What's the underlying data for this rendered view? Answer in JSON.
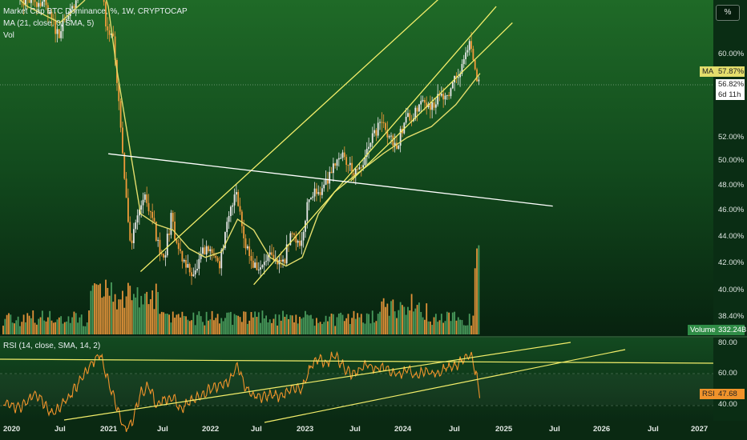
{
  "legend": {
    "title": "Market Cap BTC Dominance, %, 1W, CRYPTOCAP",
    "ma": "MA (21, close, 0, SMA, 5)",
    "vol": "Vol",
    "rsi": "RSI (14, close, SMA, 14, 2)"
  },
  "percent_button": "%",
  "price_axis": [
    "60.00%",
    "52.00%",
    "50.00%",
    "48.00%",
    "46.00%",
    "44.00%",
    "42.00%",
    "40.00%",
    "38.40%"
  ],
  "rsi_axis": [
    "80.00",
    "60.00",
    "40.00"
  ],
  "time_axis": [
    "2020",
    "Jul",
    "2021",
    "Jul",
    "2022",
    "Jul",
    "2023",
    "Jul",
    "2024",
    "Jul",
    "2025",
    "Jul",
    "2026",
    "Jul",
    "2027"
  ],
  "tags": {
    "ma_label": "MA",
    "ma_value": "57.87%",
    "price": "56.82%",
    "countdown": "6d 11h",
    "volume_label": "Volume",
    "volume_value": "332.24B",
    "rsi_label": "RSI",
    "rsi_value": "47.68"
  },
  "colors": {
    "candle_up": "#e9e9e9",
    "candle_down": "#f19b3a",
    "ma": "#e3dd6c",
    "trendline": "#f3ee6a",
    "support": "#ffffff",
    "rsi": "#f0932b",
    "volume_up": "#4fa563",
    "volume_down": "#f39b3d"
  },
  "chart_data": {
    "type": "candlestick",
    "symbol": "Market Cap BTC Dominance",
    "unit": "%",
    "interval": "1W",
    "x_range": [
      "2020-01",
      "2027-01"
    ],
    "y_visible_range": [
      38,
      64
    ],
    "price_path": [
      [
        "2020-01",
        66.5
      ],
      [
        "2020-03",
        64.5
      ],
      [
        "2020-06",
        64.5
      ],
      [
        "2020-08",
        61.5
      ],
      [
        "2020-10",
        64.0
      ],
      [
        "2020-12",
        70.0
      ],
      [
        "2021-01",
        69.0
      ],
      [
        "2021-02",
        62.0
      ],
      [
        "2021-03",
        60.5
      ],
      [
        "2021-04",
        50.0
      ],
      [
        "2021-05",
        41.5
      ],
      [
        "2021-06",
        45.5
      ],
      [
        "2021-07",
        46.5
      ],
      [
        "2021-08",
        43.5
      ],
      [
        "2021-09",
        40.5
      ],
      [
        "2021-10",
        44.5
      ],
      [
        "2021-11",
        41.5
      ],
      [
        "2021-12",
        40.0
      ],
      [
        "2022-01",
        39.5
      ],
      [
        "2022-02",
        41.5
      ],
      [
        "2022-03",
        41.5
      ],
      [
        "2022-04",
        40.5
      ],
      [
        "2022-05",
        44.0
      ],
      [
        "2022-06",
        47.5
      ],
      [
        "2022-07",
        43.0
      ],
      [
        "2022-08",
        40.5
      ],
      [
        "2022-09",
        39.8
      ],
      [
        "2022-10",
        41.0
      ],
      [
        "2022-11",
        40.5
      ],
      [
        "2022-12",
        40.8
      ],
      [
        "2023-01",
        43.5
      ],
      [
        "2023-02",
        42.0
      ],
      [
        "2023-03",
        46.5
      ],
      [
        "2023-04",
        47.0
      ],
      [
        "2023-05",
        47.5
      ],
      [
        "2023-06",
        49.5
      ],
      [
        "2023-07",
        50.5
      ],
      [
        "2023-08",
        49.5
      ],
      [
        "2023-09",
        48.5
      ],
      [
        "2023-10",
        50.0
      ],
      [
        "2023-11",
        52.0
      ],
      [
        "2023-12",
        53.5
      ],
      [
        "2024-01",
        52.0
      ],
      [
        "2024-02",
        51.5
      ],
      [
        "2024-03",
        53.5
      ],
      [
        "2024-04",
        54.0
      ],
      [
        "2024-05",
        55.5
      ],
      [
        "2024-06",
        55.0
      ],
      [
        "2024-07",
        55.5
      ],
      [
        "2024-08",
        56.0
      ],
      [
        "2024-09",
        57.0
      ],
      [
        "2024-10",
        58.5
      ],
      [
        "2024-11",
        61.0
      ],
      [
        "2024-12",
        56.8
      ]
    ],
    "ma_path": [
      [
        "2020-01",
        66.0
      ],
      [
        "2020-04",
        64.0
      ],
      [
        "2020-08",
        62.5
      ],
      [
        "2020-11",
        64.5
      ],
      [
        "2021-01",
        66.5
      ],
      [
        "2021-02",
        64.0
      ],
      [
        "2021-03",
        58.5
      ],
      [
        "2021-05",
        49.5
      ],
      [
        "2021-06",
        45.0
      ],
      [
        "2021-08",
        44.0
      ],
      [
        "2021-10",
        43.5
      ],
      [
        "2021-12",
        41.8
      ],
      [
        "2022-02",
        41.0
      ],
      [
        "2022-04",
        41.5
      ],
      [
        "2022-06",
        44.5
      ],
      [
        "2022-08",
        43.5
      ],
      [
        "2022-10",
        41.0
      ],
      [
        "2022-12",
        40.2
      ],
      [
        "2023-02",
        41.0
      ],
      [
        "2023-04",
        45.0
      ],
      [
        "2023-06",
        47.0
      ],
      [
        "2023-09",
        48.8
      ],
      [
        "2023-12",
        50.5
      ],
      [
        "2024-03",
        52.0
      ],
      [
        "2024-06",
        53.0
      ],
      [
        "2024-09",
        55.0
      ],
      [
        "2024-12",
        57.87
      ]
    ],
    "rsi_path": [
      [
        "2020-01",
        42
      ],
      [
        "2020-03",
        38
      ],
      [
        "2020-05",
        48
      ],
      [
        "2020-07",
        35
      ],
      [
        "2020-09",
        44
      ],
      [
        "2020-12",
        67
      ],
      [
        "2021-01",
        72
      ],
      [
        "2021-02",
        55
      ],
      [
        "2021-03",
        40
      ],
      [
        "2021-04",
        25
      ],
      [
        "2021-05",
        30
      ],
      [
        "2021-06",
        48
      ],
      [
        "2021-07",
        52
      ],
      [
        "2021-08",
        40
      ],
      [
        "2021-09",
        44
      ],
      [
        "2021-10",
        45
      ],
      [
        "2021-11",
        38
      ],
      [
        "2021-12",
        42
      ],
      [
        "2022-01",
        45
      ],
      [
        "2022-02",
        48
      ],
      [
        "2022-03",
        51
      ],
      [
        "2022-04",
        53
      ],
      [
        "2022-05",
        55
      ],
      [
        "2022-06",
        66
      ],
      [
        "2022-07",
        50
      ],
      [
        "2022-08",
        47
      ],
      [
        "2022-09",
        45
      ],
      [
        "2022-10",
        47
      ],
      [
        "2022-11",
        46
      ],
      [
        "2022-12",
        48
      ],
      [
        "2023-01",
        52
      ],
      [
        "2023-02",
        50
      ],
      [
        "2023-03",
        64
      ],
      [
        "2023-04",
        70
      ],
      [
        "2023-05",
        66
      ],
      [
        "2023-06",
        72
      ],
      [
        "2023-07",
        65
      ],
      [
        "2023-08",
        60
      ],
      [
        "2023-09",
        62
      ],
      [
        "2023-10",
        66
      ],
      [
        "2023-11",
        63
      ],
      [
        "2023-12",
        64
      ],
      [
        "2024-01",
        61
      ],
      [
        "2024-02",
        59
      ],
      [
        "2024-03",
        63
      ],
      [
        "2024-04",
        58
      ],
      [
        "2024-05",
        62
      ],
      [
        "2024-06",
        60
      ],
      [
        "2024-07",
        61
      ],
      [
        "2024-08",
        64
      ],
      [
        "2024-09",
        65
      ],
      [
        "2024-10",
        69
      ],
      [
        "2024-11",
        71
      ],
      [
        "2024-12",
        47.68
      ]
    ],
    "rsi_range": [
      30,
      80
    ],
    "last_values": {
      "price": 56.82,
      "ma": 57.87,
      "rsi": 47.68,
      "volume": "332.24B"
    },
    "trendlines": [
      {
        "name": "channel-upper",
        "from": [
          "2021-06",
          39.7
        ],
        "to": [
          "2025-02",
          69.5
        ]
      },
      {
        "name": "channel-lower",
        "from": [
          "2023-08",
          48.0
        ],
        "to": [
          "2025-04",
          62.5
        ]
      },
      {
        "name": "steep-support",
        "from": [
          "2022-08",
          38.5
        ],
        "to": [
          "2025-02",
          64.0
        ]
      },
      {
        "name": "horizontal-support",
        "from": [
          "2021-02",
          50.5
        ],
        "to": [
          "2025-09",
          45.7
        ]
      }
    ]
  }
}
